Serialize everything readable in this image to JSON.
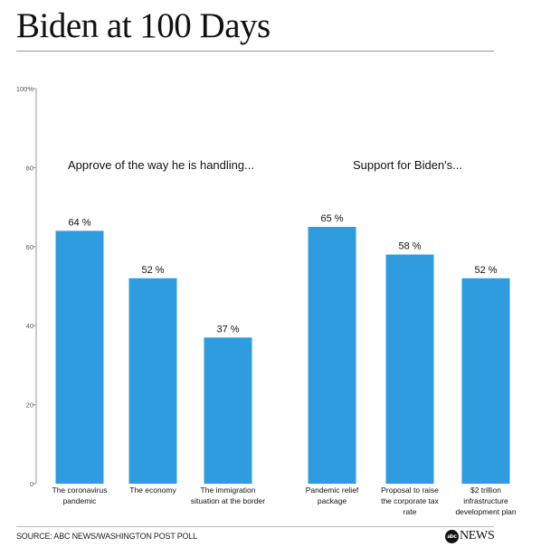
{
  "header": {
    "title": "Biden at 100 Days"
  },
  "footer": {
    "source": "SOURCE: ABC NEWS/WASHINGTON POST POLL",
    "logo_mark": "abc",
    "logo_text": "NEWS"
  },
  "colors": {
    "bar": "#2f9ce0",
    "axis": "#9a9a9a",
    "text": "#111111"
  },
  "chart_data": {
    "type": "bar",
    "ylim": [
      0,
      100
    ],
    "y_ticks": [
      {
        "value": 0,
        "label": "0"
      },
      {
        "value": 20,
        "label": "20"
      },
      {
        "value": 40,
        "label": "40"
      },
      {
        "value": 60,
        "label": "60"
      },
      {
        "value": 80,
        "label": "80"
      },
      {
        "value": 100,
        "label": "100%"
      }
    ],
    "grid": false,
    "groups": [
      {
        "heading": "Approve of the way he is handling...",
        "categories": [
          {
            "label": [
              "The coronavirus",
              "pandemic"
            ],
            "value": 64,
            "data_label": "64 %"
          },
          {
            "label": [
              "The economy"
            ],
            "value": 52,
            "data_label": "52 %"
          },
          {
            "label": [
              "The immigration",
              "situation at the border"
            ],
            "value": 37,
            "data_label": "37 %"
          }
        ]
      },
      {
        "heading": "Support for Biden's...",
        "categories": [
          {
            "label": [
              "Pandemic relief",
              "package"
            ],
            "value": 65,
            "data_label": "65 %"
          },
          {
            "label": [
              "Proposal to raise",
              "the corporate tax",
              "rate"
            ],
            "value": 58,
            "data_label": "58 %"
          },
          {
            "label": [
              "$2 trillion",
              "infrastructure",
              "development plan"
            ],
            "value": 52,
            "data_label": "52 %"
          }
        ]
      }
    ]
  }
}
